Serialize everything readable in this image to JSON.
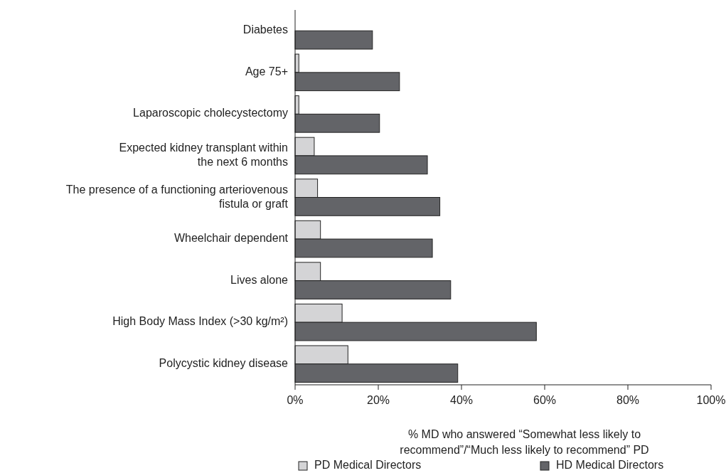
{
  "chart_data": {
    "type": "bar",
    "orientation": "horizontal",
    "categories": [
      "Diabetes",
      "Age 75+",
      "Laparoscopic cholecystectomy",
      "Expected kidney transplant within\nthe next 6 months",
      "The presence of a functioning arteriovenous\nfistula or graft",
      "Wheelchair dependent",
      "Lives alone",
      "High Body Mass Index (>30 kg/m²)",
      "Polycystic kidney disease"
    ],
    "series": [
      {
        "name": "PD Medical Directors",
        "color": "#d4d4d6",
        "values": [
          0,
          0.9,
          0.9,
          4.6,
          5.4,
          6.1,
          6.1,
          11.3,
          12.7
        ]
      },
      {
        "name": "HD Medical Directors",
        "color": "#636468",
        "values": [
          18.6,
          25.1,
          20.3,
          31.8,
          34.8,
          33.0,
          37.4,
          58.0,
          39.1
        ]
      }
    ],
    "xlim": [
      0,
      100
    ],
    "xticks": [
      {
        "value": 0,
        "label": "0%"
      },
      {
        "value": 20,
        "label": "20%"
      },
      {
        "value": 40,
        "label": "40%"
      },
      {
        "value": 60,
        "label": "60%"
      },
      {
        "value": 80,
        "label": "80%"
      },
      {
        "value": 100,
        "label": "100%"
      }
    ],
    "xlabel": "% MD who answered “Somewhat less likely to\nrecommend”/“Much less likely to recommend” PD",
    "grid": false,
    "legend": "bottom"
  }
}
